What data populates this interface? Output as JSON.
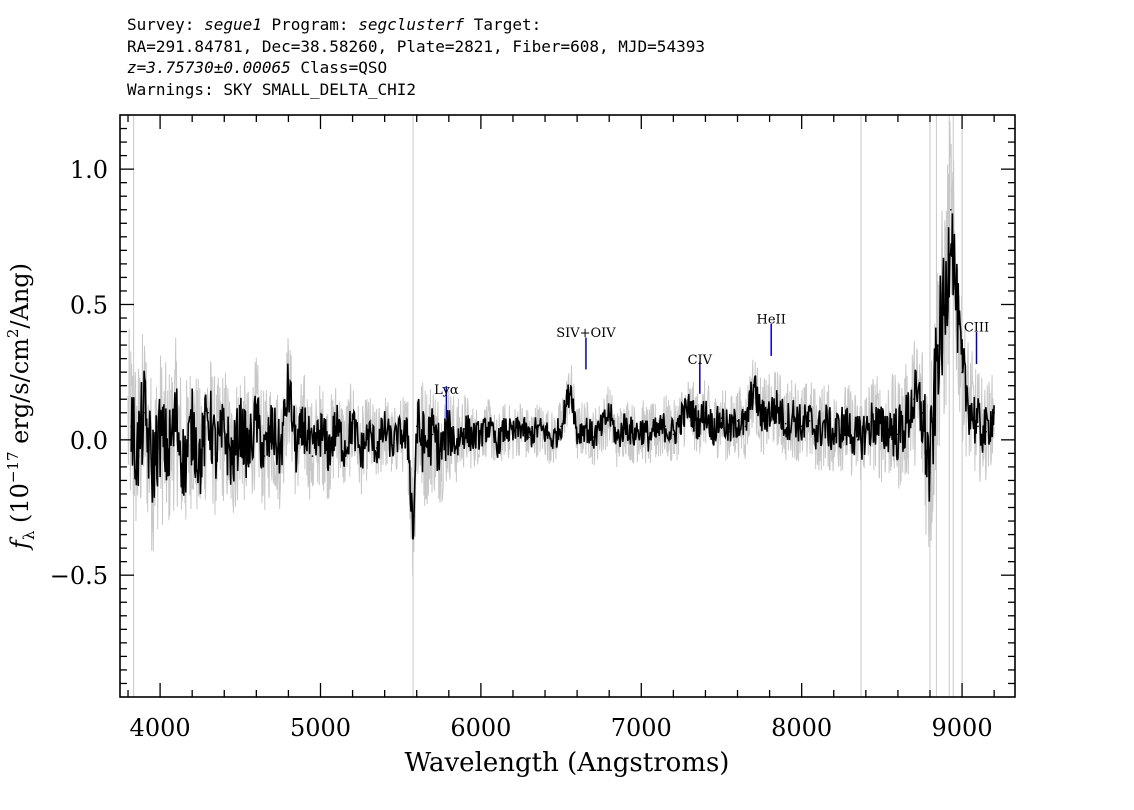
{
  "header": {
    "survey_label": "Survey: ",
    "survey": "segue1",
    "program_label": " Program: ",
    "program": "segclusterf",
    "target_label": " Target:",
    "line2": "RA=291.84781, Dec=38.58260, Plate=2821, Fiber=608, MJD=54393",
    "redshift": "z=3.75730±0.00065",
    "class_text": " Class=QSO",
    "warnings": "Warnings: SKY SMALL_DELTA_CHI2"
  },
  "chart_data": {
    "type": "line",
    "xlabel": "Wavelength (Angstroms)",
    "ylabel": "f_λ (10^-17 erg/s/cm²/Ang)",
    "xlim": [
      3750,
      9330
    ],
    "ylim": [
      -0.95,
      1.2
    ],
    "xticks": [
      4000,
      5000,
      6000,
      7000,
      8000,
      9000
    ],
    "yticks": [
      -0.5,
      0.0,
      0.5,
      1.0
    ],
    "ytick_labels": [
      "−0.5",
      "0.0",
      "0.5",
      "1.0"
    ],
    "colors": {
      "flux": "#000000",
      "error_band": "#c8c8c8",
      "lines": "#0000cc"
    },
    "series": [
      {
        "name": "flux",
        "x": [
          3820,
          3860,
          3900,
          3950,
          4000,
          4050,
          4100,
          4150,
          4200,
          4250,
          4300,
          4350,
          4400,
          4450,
          4500,
          4550,
          4600,
          4650,
          4700,
          4750,
          4800,
          4850,
          4900,
          4950,
          5000,
          5050,
          5100,
          5150,
          5200,
          5250,
          5300,
          5350,
          5400,
          5450,
          5500,
          5550,
          5577,
          5600,
          5650,
          5700,
          5750,
          5800,
          5850,
          5900,
          5950,
          6000,
          6050,
          6100,
          6150,
          6200,
          6250,
          6300,
          6350,
          6400,
          6450,
          6500,
          6560,
          6600,
          6650,
          6700,
          6750,
          6800,
          6850,
          6900,
          6950,
          7000,
          7050,
          7100,
          7150,
          7200,
          7250,
          7300,
          7350,
          7400,
          7450,
          7500,
          7550,
          7600,
          7650,
          7700,
          7750,
          7800,
          7850,
          7900,
          7950,
          8000,
          8050,
          8100,
          8150,
          8200,
          8250,
          8300,
          8350,
          8400,
          8450,
          8500,
          8550,
          8600,
          8650,
          8700,
          8750,
          8800,
          8850,
          8900,
          8930,
          8960,
          9000,
          9050,
          9100,
          9150,
          9200
        ],
        "values": [
          0.05,
          -0.05,
          0.1,
          -0.1,
          0.02,
          -0.05,
          0.08,
          -0.1,
          0.05,
          -0.08,
          0.1,
          -0.05,
          0.03,
          -0.08,
          0.05,
          -0.05,
          0.08,
          -0.06,
          0.04,
          -0.05,
          0.2,
          -0.04,
          0.05,
          -0.06,
          0.03,
          -0.04,
          0.05,
          -0.03,
          0.06,
          -0.05,
          0.02,
          -0.03,
          0.04,
          -0.02,
          0.03,
          -0.01,
          -0.35,
          0.05,
          -0.02,
          0.02,
          -0.04,
          0.03,
          -0.01,
          0.04,
          0.01,
          0.02,
          0.05,
          -0.02,
          0.04,
          0.02,
          0.05,
          0.01,
          0.04,
          0.03,
          0.0,
          0.05,
          0.2,
          0.02,
          0.05,
          0.01,
          0.04,
          0.1,
          0.0,
          0.06,
          0.02,
          0.04,
          0.01,
          0.03,
          0.05,
          0.02,
          0.08,
          0.12,
          0.06,
          0.1,
          0.04,
          0.08,
          0.03,
          0.07,
          0.05,
          0.2,
          0.08,
          0.1,
          0.12,
          0.06,
          0.09,
          0.05,
          0.07,
          0.03,
          0.06,
          0.02,
          0.05,
          0.04,
          0.0,
          0.03,
          0.07,
          0.03,
          0.05,
          0.02,
          0.06,
          0.15,
          0.1,
          -0.12,
          0.35,
          0.5,
          0.85,
          0.55,
          0.25,
          0.12,
          0.05,
          0.03,
          0.1
        ]
      },
      {
        "name": "error",
        "x": [
          3800,
          4200,
          4600,
          5000,
          5500,
          5600,
          6000,
          6500,
          7000,
          7500,
          8000,
          8300,
          8500,
          8700,
          8800,
          8900,
          9000,
          9200
        ],
        "values": [
          0.28,
          0.22,
          0.18,
          0.15,
          0.1,
          0.2,
          0.08,
          0.08,
          0.09,
          0.1,
          0.12,
          0.13,
          0.15,
          0.18,
          0.3,
          0.35,
          0.2,
          0.12
        ]
      }
    ],
    "annotations": [
      {
        "label": "Lyα",
        "x": 5785,
        "y": 0.08,
        "label_y": 0.17
      },
      {
        "label": "SIV+OIV",
        "x": 6655,
        "y": 0.26,
        "label_y": 0.38
      },
      {
        "label": "CIV",
        "x": 7365,
        "y": 0.17,
        "label_y": 0.28
      },
      {
        "label": "HeII",
        "x": 7810,
        "y": 0.31,
        "label_y": 0.43
      },
      {
        "label": "CIII",
        "x": 9090,
        "y": 0.28,
        "label_y": 0.4
      }
    ]
  }
}
